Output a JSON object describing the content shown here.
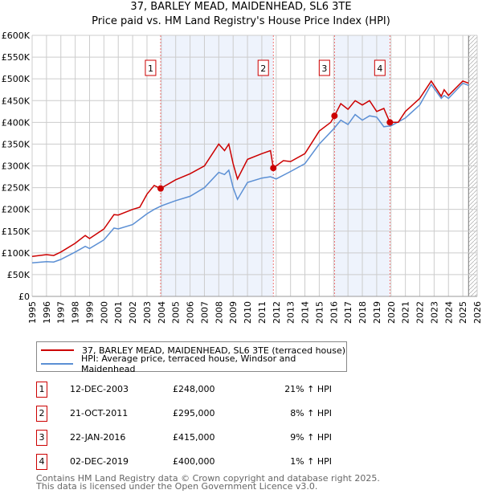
{
  "chart_data": {
    "type": "line",
    "title": "37, BARLEY MEAD, MAIDENHEAD, SL6 3TE",
    "subtitle": "Price paid vs. HM Land Registry's House Price Index (HPI)",
    "xlim": [
      1995,
      2026
    ],
    "ylim": [
      0,
      600000
    ],
    "x_ticks": [
      "1995",
      "1996",
      "1997",
      "1998",
      "1999",
      "2000",
      "2001",
      "2002",
      "2003",
      "2004",
      "2005",
      "2006",
      "2007",
      "2008",
      "2009",
      "2010",
      "2011",
      "2012",
      "2013",
      "2014",
      "2015",
      "2016",
      "2017",
      "2018",
      "2019",
      "2020",
      "2021",
      "2022",
      "2023",
      "2024",
      "2025",
      "2026"
    ],
    "y_ticks": [
      {
        "v": 0,
        "l": "£0"
      },
      {
        "v": 50000,
        "l": "£50K"
      },
      {
        "v": 100000,
        "l": "£100K"
      },
      {
        "v": 150000,
        "l": "£150K"
      },
      {
        "v": 200000,
        "l": "£200K"
      },
      {
        "v": 250000,
        "l": "£250K"
      },
      {
        "v": 300000,
        "l": "£300K"
      },
      {
        "v": 350000,
        "l": "£350K"
      },
      {
        "v": 400000,
        "l": "£400K"
      },
      {
        "v": 450000,
        "l": "£450K"
      },
      {
        "v": 500000,
        "l": "£500K"
      },
      {
        "v": 550000,
        "l": "£550K"
      },
      {
        "v": 600000,
        "l": "£600K"
      }
    ],
    "grid": true,
    "shaded_ranges": [
      [
        2003.95,
        2011.8
      ],
      [
        2016.06,
        2019.92
      ]
    ],
    "hatched_from": 2025.4,
    "series": [
      {
        "name": "37, BARLEY MEAD, MAIDENHEAD, SL6 3TE (terraced house)",
        "color": "#cc0000",
        "x": [
          1995,
          1996,
          1996.5,
          1997,
          1998,
          1998.7,
          1999,
          2000,
          2000.7,
          2001,
          2002,
          2002.5,
          2003,
          2003.5,
          2003.95,
          2005,
          2006,
          2007,
          2008,
          2008.4,
          2008.7,
          2009,
          2009.3,
          2010,
          2011,
          2011.6,
          2011.8,
          2012.5,
          2013,
          2014,
          2015,
          2015.8,
          2016.06,
          2016.5,
          2017,
          2017.5,
          2018,
          2018.5,
          2019,
          2019.5,
          2019.92,
          2020.5,
          2021,
          2022,
          2022.8,
          2023.5,
          2023.7,
          2024,
          2025,
          2025.4
        ],
        "y": [
          92000,
          96000,
          94000,
          102000,
          122000,
          140000,
          133000,
          155000,
          188000,
          187000,
          200000,
          205000,
          235000,
          255000,
          248000,
          268000,
          282000,
          300000,
          350000,
          335000,
          350000,
          305000,
          270000,
          315000,
          328000,
          335000,
          295000,
          312000,
          310000,
          328000,
          380000,
          400000,
          415000,
          443000,
          430000,
          450000,
          440000,
          450000,
          425000,
          432000,
          400000,
          400000,
          425000,
          455000,
          495000,
          460000,
          475000,
          462000,
          495000,
          490000
        ]
      },
      {
        "name": "HPI: Average price, terraced house, Windsor and Maidenhead",
        "color": "#5b8fd4",
        "x": [
          1995,
          1996,
          1996.5,
          1997,
          1998,
          1998.7,
          1999,
          2000,
          2000.7,
          2001,
          2002,
          2003,
          2003.5,
          2004,
          2005,
          2006,
          2007,
          2008,
          2008.4,
          2008.7,
          2009,
          2009.3,
          2010,
          2011,
          2011.6,
          2012,
          2013,
          2014,
          2015,
          2016,
          2016.5,
          2017,
          2017.5,
          2018,
          2018.5,
          2019,
          2019.5,
          2020,
          2021,
          2022,
          2022.8,
          2023.5,
          2023.7,
          2024,
          2025,
          2025.4
        ],
        "y": [
          77000,
          80000,
          79000,
          85000,
          102000,
          115000,
          110000,
          130000,
          157000,
          155000,
          165000,
          190000,
          200000,
          208000,
          220000,
          230000,
          250000,
          285000,
          280000,
          290000,
          250000,
          223000,
          262000,
          272000,
          275000,
          270000,
          287000,
          305000,
          350000,
          385000,
          405000,
          395000,
          418000,
          405000,
          415000,
          412000,
          390000,
          392000,
          410000,
          440000,
          487000,
          455000,
          462000,
          455000,
          490000,
          485000
        ]
      }
    ],
    "sales": [
      {
        "label": "1",
        "x": 2003.95,
        "y": 248000,
        "date": "12-DEC-2003",
        "price": "£248,000",
        "hpi": "21% ↑ HPI"
      },
      {
        "label": "2",
        "x": 2011.8,
        "y": 295000,
        "date": "21-OCT-2011",
        "price": "£295,000",
        "hpi": "8% ↑ HPI"
      },
      {
        "label": "3",
        "x": 2016.06,
        "y": 415000,
        "date": "22-JAN-2016",
        "price": "£415,000",
        "hpi": "9% ↑ HPI"
      },
      {
        "label": "4",
        "x": 2019.92,
        "y": 400000,
        "date": "02-DEC-2019",
        "price": "£400,000",
        "hpi": "1% ↑ HPI"
      }
    ],
    "legend": {
      "placement": "bottom",
      "items": [
        "37, BARLEY MEAD, MAIDENHEAD, SL6 3TE (terraced house)",
        "HPI: Average price, terraced house, Windsor and Maidenhead"
      ]
    }
  },
  "footer": {
    "line1": "Contains HM Land Registry data © Crown copyright and database right 2025.",
    "line2": "This data is licensed under the Open Government Licence v3.0."
  }
}
